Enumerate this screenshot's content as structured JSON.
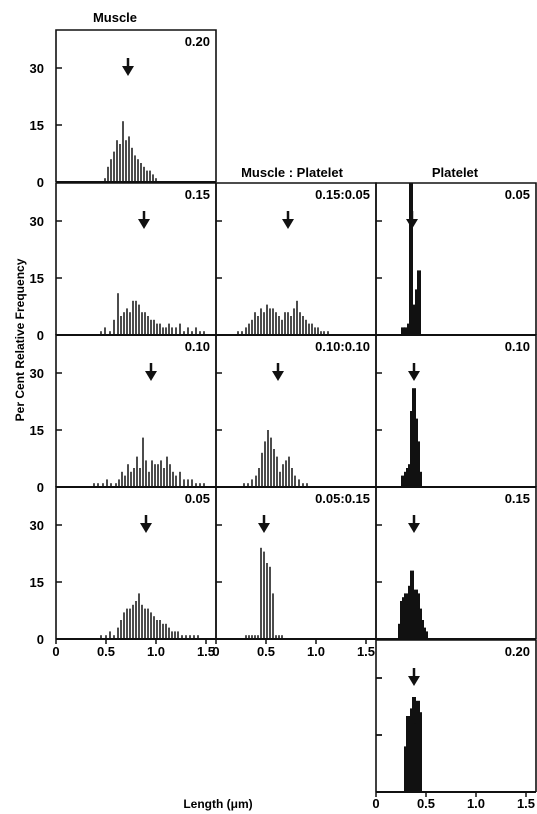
{
  "chart_data": {
    "type": "bar",
    "column_titles": [
      "Muscle",
      "Muscle : Platelet",
      "Platelet"
    ],
    "ylabel": "Per Cent Relative Frequency",
    "xlabel": "Length (μm)",
    "xlim": [
      0,
      1.6
    ],
    "ylim": [
      0,
      40
    ],
    "y_ticks": [
      "30",
      "15",
      "0"
    ],
    "x_ticks": [
      "0",
      "0.5",
      "1.0",
      "1.5"
    ],
    "panels": [
      {
        "label": "0.20",
        "row": 0,
        "col": 0,
        "mode": "lines",
        "arrow": 0.72,
        "x": [
          0.49,
          0.52,
          0.55,
          0.58,
          0.61,
          0.64,
          0.67,
          0.7,
          0.73,
          0.76,
          0.79,
          0.82,
          0.85,
          0.88,
          0.91,
          0.94,
          0.97,
          1.0
        ],
        "values": [
          1,
          4,
          6,
          8,
          11,
          10,
          16,
          11,
          12,
          9,
          7,
          6,
          5,
          4,
          3,
          3,
          2,
          1
        ]
      },
      {
        "label": "0.15",
        "row": 1,
        "col": 0,
        "mode": "lines",
        "arrow": 0.88,
        "x": [
          0.45,
          0.49,
          0.54,
          0.58,
          0.62,
          0.65,
          0.68,
          0.71,
          0.74,
          0.77,
          0.8,
          0.83,
          0.86,
          0.89,
          0.92,
          0.95,
          0.98,
          1.01,
          1.04,
          1.07,
          1.1,
          1.13,
          1.16,
          1.2,
          1.24,
          1.28,
          1.32,
          1.36,
          1.4,
          1.44,
          1.48
        ],
        "values": [
          1,
          2,
          1,
          4,
          11,
          5,
          6,
          7,
          6,
          9,
          9,
          8,
          6,
          6,
          5,
          4,
          4,
          3,
          3,
          2,
          2,
          3,
          2,
          2,
          3,
          1,
          2,
          1,
          2,
          1,
          1
        ]
      },
      {
        "label": "0.10",
        "row": 2,
        "col": 0,
        "mode": "lines",
        "arrow": 0.95,
        "x": [
          0.38,
          0.42,
          0.47,
          0.51,
          0.55,
          0.6,
          0.63,
          0.66,
          0.69,
          0.72,
          0.75,
          0.78,
          0.81,
          0.84,
          0.87,
          0.9,
          0.93,
          0.96,
          0.99,
          1.02,
          1.05,
          1.08,
          1.11,
          1.14,
          1.17,
          1.2,
          1.24,
          1.28,
          1.32,
          1.36,
          1.4,
          1.44,
          1.48
        ],
        "values": [
          1,
          1,
          1,
          2,
          1,
          1,
          2,
          4,
          3,
          6,
          4,
          5,
          8,
          5,
          13,
          7,
          4,
          7,
          6,
          6,
          7,
          5,
          8,
          6,
          4,
          3,
          4,
          2,
          2,
          2,
          1,
          1,
          1
        ]
      },
      {
        "label": "0.05",
        "row": 3,
        "col": 0,
        "mode": "lines",
        "arrow": 0.9,
        "x": [
          0.45,
          0.5,
          0.54,
          0.58,
          0.62,
          0.65,
          0.68,
          0.71,
          0.74,
          0.77,
          0.8,
          0.83,
          0.86,
          0.89,
          0.92,
          0.95,
          0.98,
          1.01,
          1.04,
          1.07,
          1.1,
          1.13,
          1.16,
          1.19,
          1.22,
          1.26,
          1.3,
          1.34,
          1.38,
          1.42
        ],
        "values": [
          1,
          1,
          2,
          1,
          3,
          5,
          7,
          8,
          8,
          9,
          10,
          12,
          9,
          8,
          8,
          7,
          6,
          5,
          5,
          4,
          4,
          3,
          2,
          2,
          2,
          1,
          1,
          1,
          1,
          1
        ]
      },
      {
        "label": "0.15:0.05",
        "row": 1,
        "col": 1,
        "mode": "lines",
        "arrow": 0.72,
        "x": [
          0.22,
          0.26,
          0.3,
          0.33,
          0.36,
          0.39,
          0.42,
          0.45,
          0.48,
          0.51,
          0.54,
          0.57,
          0.6,
          0.63,
          0.66,
          0.69,
          0.72,
          0.75,
          0.78,
          0.81,
          0.84,
          0.87,
          0.9,
          0.93,
          0.96,
          0.99,
          1.02,
          1.05,
          1.08,
          1.12
        ],
        "values": [
          1,
          1,
          2,
          3,
          4,
          6,
          5,
          7,
          6,
          8,
          7,
          7,
          6,
          5,
          4,
          6,
          6,
          5,
          7,
          9,
          6,
          5,
          4,
          3,
          3,
          2,
          2,
          1,
          1,
          1
        ]
      },
      {
        "label": "0.10:0.10",
        "row": 2,
        "col": 1,
        "mode": "lines",
        "arrow": 0.62,
        "x": [
          0.28,
          0.32,
          0.36,
          0.4,
          0.43,
          0.46,
          0.49,
          0.52,
          0.55,
          0.58,
          0.61,
          0.64,
          0.67,
          0.7,
          0.73,
          0.76,
          0.79,
          0.83,
          0.87,
          0.91
        ],
        "values": [
          1,
          1,
          2,
          3,
          5,
          9,
          12,
          15,
          13,
          10,
          8,
          4,
          6,
          7,
          8,
          5,
          3,
          2,
          1,
          1
        ]
      },
      {
        "label": "0.05:0.15",
        "row": 3,
        "col": 1,
        "mode": "lines",
        "arrow": 0.48,
        "x": [
          0.3,
          0.33,
          0.36,
          0.39,
          0.42,
          0.45,
          0.48,
          0.51,
          0.54,
          0.57,
          0.6,
          0.63,
          0.66
        ],
        "values": [
          1,
          1,
          1,
          1,
          1,
          24,
          23,
          20,
          19,
          12,
          1,
          1,
          1
        ]
      },
      {
        "label": "0.05",
        "row": 1,
        "col": 2,
        "mode": "blocks",
        "arrow": 0.36,
        "x": [
          0.27,
          0.3,
          0.33,
          0.35,
          0.37,
          0.39,
          0.41,
          0.43
        ],
        "values": [
          2,
          2,
          3,
          40,
          5,
          8,
          12,
          17
        ]
      },
      {
        "label": "0.10",
        "row": 2,
        "col": 2,
        "mode": "blocks",
        "arrow": 0.38,
        "x": [
          0.27,
          0.3,
          0.32,
          0.34,
          0.36,
          0.38,
          0.4,
          0.42,
          0.44
        ],
        "values": [
          3,
          4,
          5,
          6,
          20,
          26,
          18,
          12,
          4
        ]
      },
      {
        "label": "0.15",
        "row": 3,
        "col": 2,
        "mode": "blocks",
        "arrow": 0.38,
        "x": [
          0.24,
          0.26,
          0.28,
          0.3,
          0.32,
          0.34,
          0.36,
          0.38,
          0.4,
          0.42,
          0.44,
          0.46,
          0.48,
          0.5
        ],
        "values": [
          4,
          10,
          11,
          12,
          9,
          14,
          18,
          10,
          13,
          12,
          8,
          5,
          3,
          2
        ]
      },
      {
        "label": "0.20",
        "row": 4,
        "col": 2,
        "mode": "blocks",
        "arrow": 0.38,
        "x": [
          0.3,
          0.32,
          0.34,
          0.36,
          0.38,
          0.4,
          0.42,
          0.44
        ],
        "values": [
          12,
          20,
          16,
          22,
          25,
          18,
          24,
          21
        ]
      }
    ]
  }
}
